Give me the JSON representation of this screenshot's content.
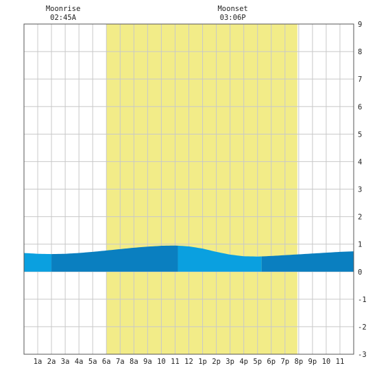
{
  "chart_data": {
    "type": "area",
    "title": "",
    "xlabel": "",
    "ylabel": "",
    "x_ticks": [
      "1a",
      "2a",
      "3a",
      "4a",
      "5a",
      "6a",
      "7a",
      "8a",
      "9a",
      "10",
      "11",
      "12",
      "1p",
      "2p",
      "3p",
      "4p",
      "5p",
      "6p",
      "7p",
      "8p",
      "9p",
      "10",
      "11"
    ],
    "y_ticks": [
      "9",
      "8",
      "7",
      "6",
      "5",
      "4",
      "3",
      "2",
      "1",
      "0",
      "-1",
      "-2",
      "-3"
    ],
    "xlim": [
      0,
      24
    ],
    "ylim": [
      -3,
      9
    ],
    "grid": true,
    "daylight": {
      "start_hour": 6.0,
      "end_hour": 19.9,
      "color": "#f2ec88"
    },
    "annotations": [
      {
        "label": "Moonrise",
        "time": "02:45A",
        "hour": 2.75
      },
      {
        "label": "Moonset",
        "time": "03:06P",
        "hour": 15.1
      }
    ],
    "series": [
      {
        "x": [
          0,
          1,
          2,
          3,
          4,
          5,
          6,
          7,
          8,
          9,
          10,
          11,
          12,
          13,
          14,
          15,
          16,
          17,
          18,
          19,
          20,
          21,
          22,
          23,
          24
        ],
        "y": [
          0.68,
          0.65,
          0.64,
          0.65,
          0.68,
          0.72,
          0.77,
          0.82,
          0.87,
          0.91,
          0.94,
          0.95,
          0.92,
          0.84,
          0.72,
          0.62,
          0.56,
          0.55,
          0.57,
          0.6,
          0.63,
          0.66,
          0.69,
          0.72,
          0.74
        ]
      }
    ],
    "band_colors": {
      "light": "#0aa0e0",
      "dark": "#0a7fc0"
    },
    "band_breaks": [
      0,
      2,
      11.2,
      17.3,
      24
    ]
  }
}
